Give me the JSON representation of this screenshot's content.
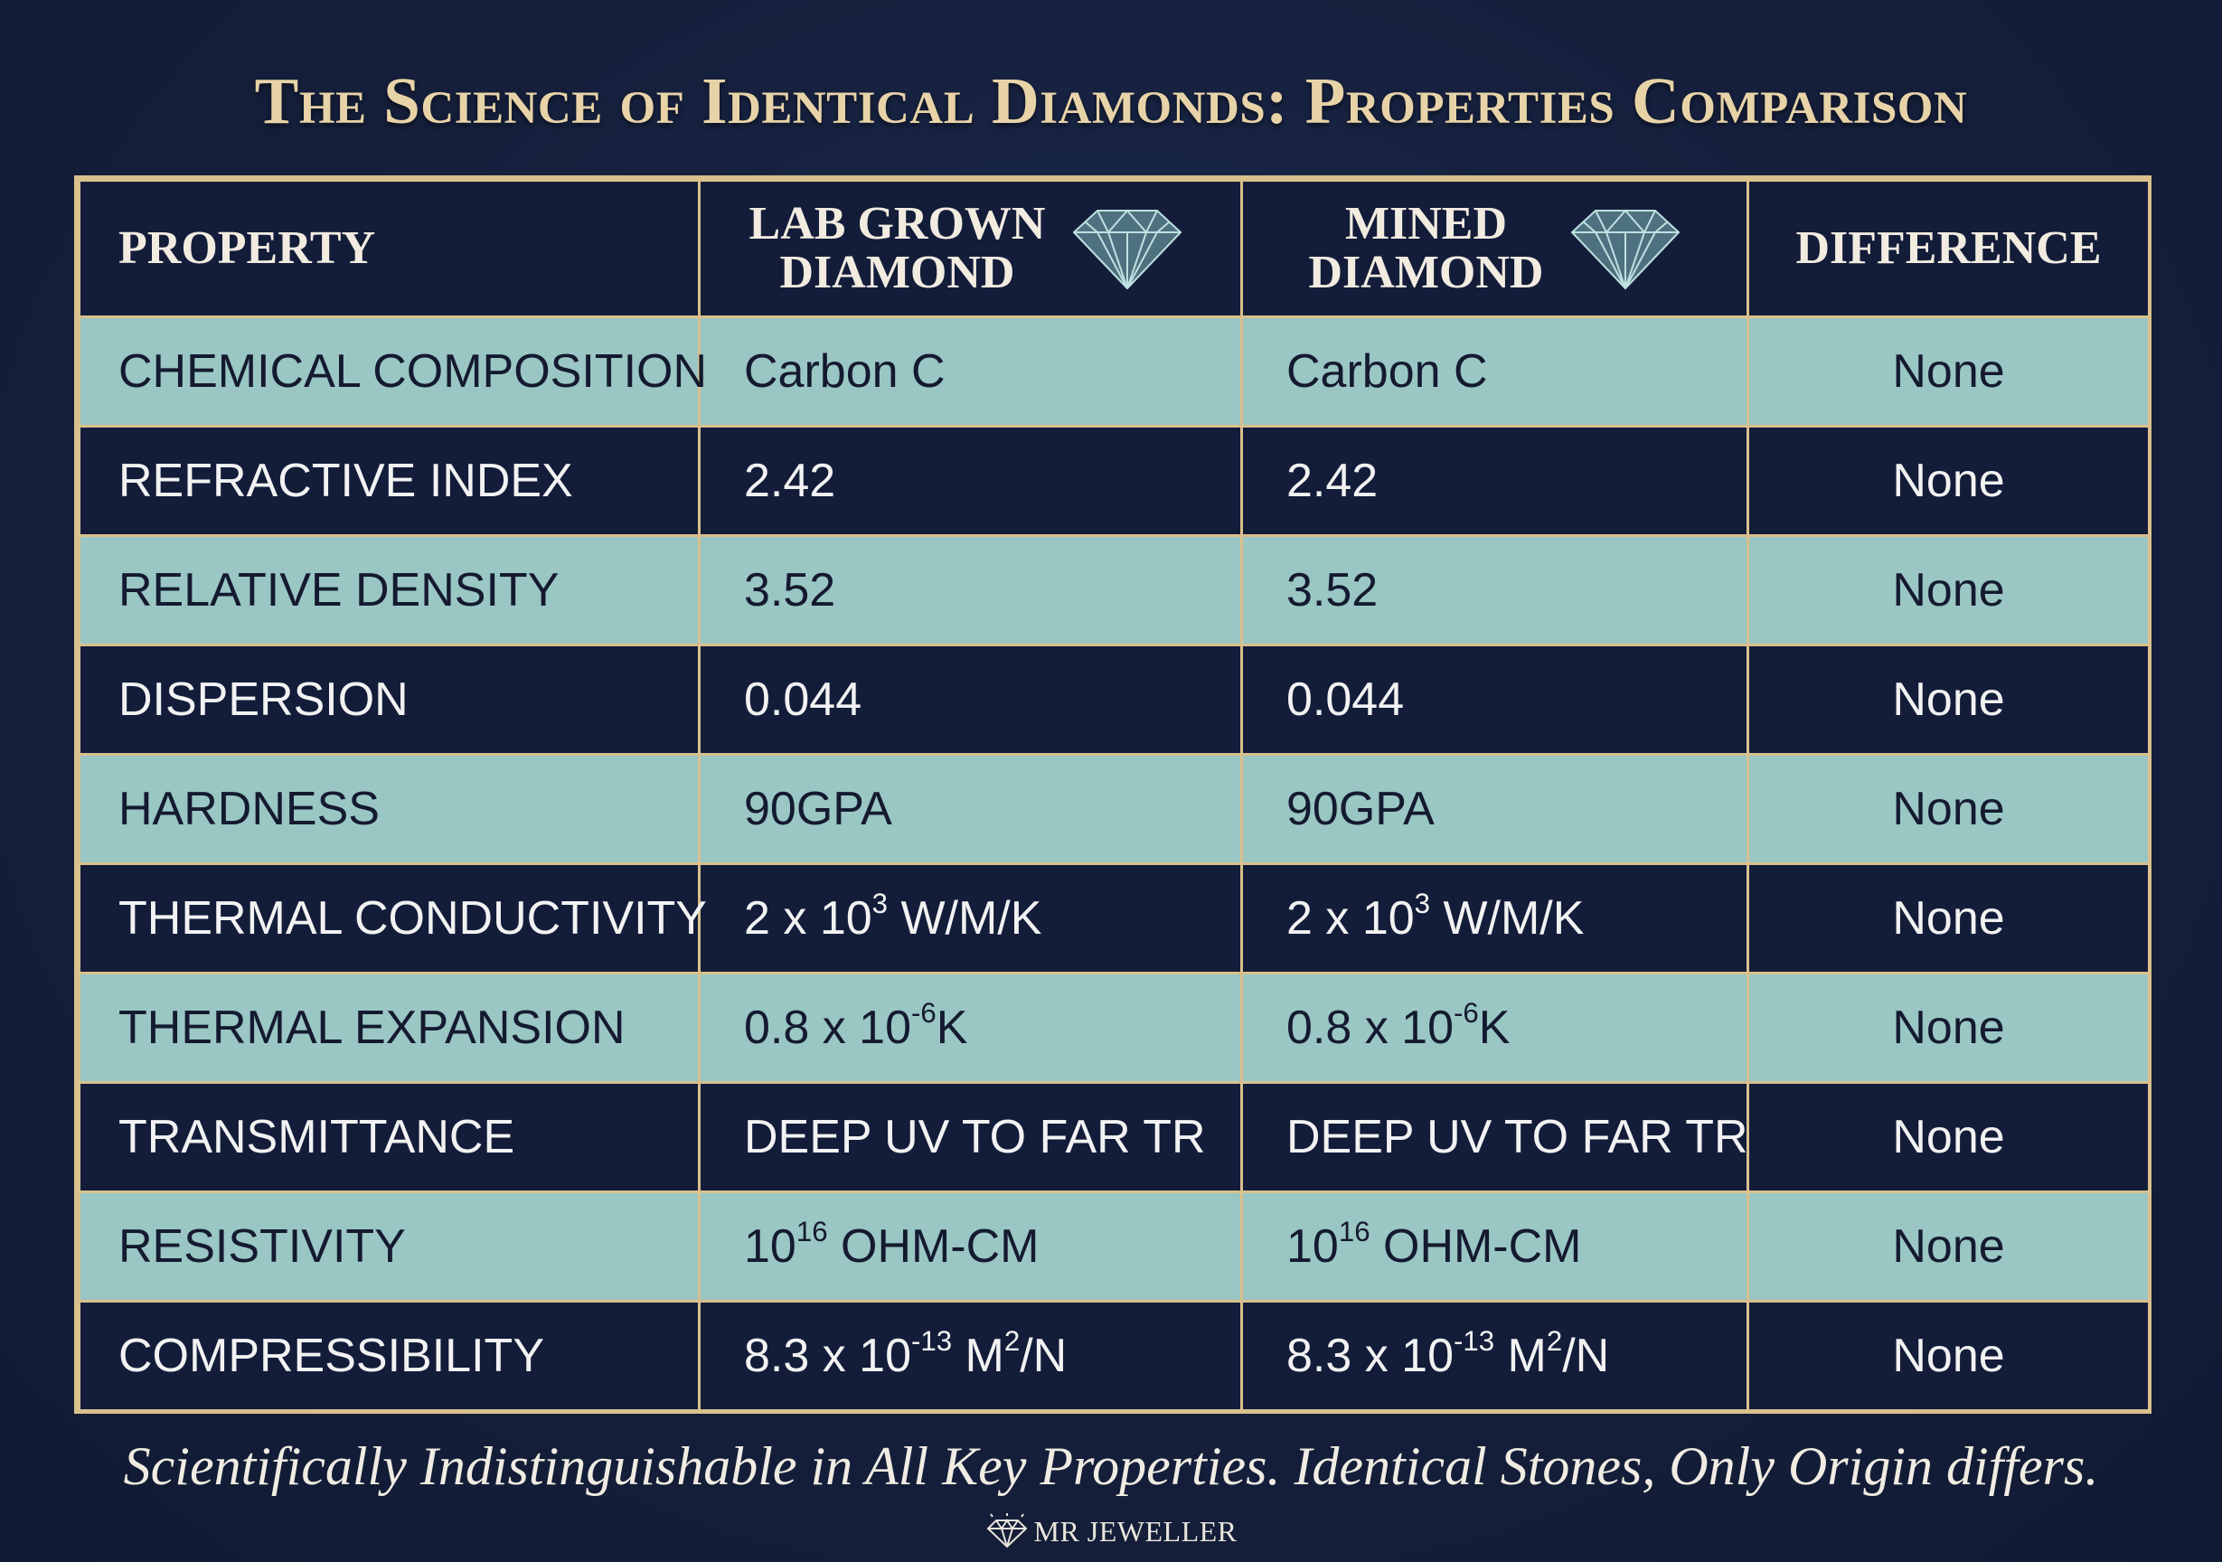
{
  "title": "The Science of Identical Diamonds: Properties Comparison",
  "table": {
    "headers": {
      "property": "PROPERTY",
      "lab_line1": "LAB GROWN",
      "lab_line2": "DIAMOND",
      "mined_line1": "MINED",
      "mined_line2": "DIAMOND",
      "difference": "DIFFERENCE"
    },
    "rows": [
      {
        "property": "CHEMICAL COMPOSITION",
        "lab": {
          "base": "Carbon C"
        },
        "mined": {
          "base": "Carbon C"
        },
        "difference": "None"
      },
      {
        "property": "REFRACTIVE INDEX",
        "lab": {
          "base": "2.42"
        },
        "mined": {
          "base": "2.42"
        },
        "difference": "None"
      },
      {
        "property": "RELATIVE DENSITY",
        "lab": {
          "base": "3.52"
        },
        "mined": {
          "base": "3.52"
        },
        "difference": "None"
      },
      {
        "property": "DISPERSION",
        "lab": {
          "base": "0.044"
        },
        "mined": {
          "base": "0.044"
        },
        "difference": "None"
      },
      {
        "property": "HARDNESS",
        "lab": {
          "base": "90GPA"
        },
        "mined": {
          "base": "90GPA"
        },
        "difference": "None"
      },
      {
        "property": "THERMAL CONDUCTIVITY",
        "lab": {
          "base": "2 x 10",
          "sup": "3",
          "tail": " W/M/K"
        },
        "mined": {
          "base": "2 x 10",
          "sup": "3",
          "tail": " W/M/K"
        },
        "difference": "None"
      },
      {
        "property": "THERMAL EXPANSION",
        "lab": {
          "base": "0.8 x 10",
          "sup": "-6",
          "tail": "K"
        },
        "mined": {
          "base": "0.8 x 10",
          "sup": "-6",
          "tail": "K"
        },
        "difference": "None"
      },
      {
        "property": "TRANSMITTANCE",
        "lab": {
          "base": "DEEP UV TO FAR TR"
        },
        "mined": {
          "base": "DEEP UV TO FAR TR"
        },
        "difference": "None"
      },
      {
        "property": "RESISTIVITY",
        "lab": {
          "base": "10",
          "sup": "16",
          "tail": " OHM-CM"
        },
        "mined": {
          "base": "10",
          "sup": "16",
          "tail": " OHM-CM"
        },
        "difference": "None"
      },
      {
        "property": "COMPRESSIBILITY",
        "lab": {
          "base": "8.3 x 10",
          "sup": "-13",
          "tail": " M",
          "sup2": "2",
          "tail2": "/N"
        },
        "mined": {
          "base": "8.3 x 10",
          "sup": "-13",
          "tail": " M",
          "sup2": "2",
          "tail2": "/N"
        },
        "difference": "None"
      }
    ]
  },
  "footer": "Scientifically Indistinguishable in All Key Properties. Identical Stones, Only Origin differs.",
  "brand": "MR JEWELLER",
  "icons": {
    "header_gem": "diamond-icon",
    "brand_logo": "diamond-logo-icon"
  },
  "colors": {
    "background": "#16213f",
    "title": "#e8d3a8",
    "border_gold": "#d9c08c",
    "row_light": "#9ac6c4",
    "row_dark": "#131d3a"
  }
}
